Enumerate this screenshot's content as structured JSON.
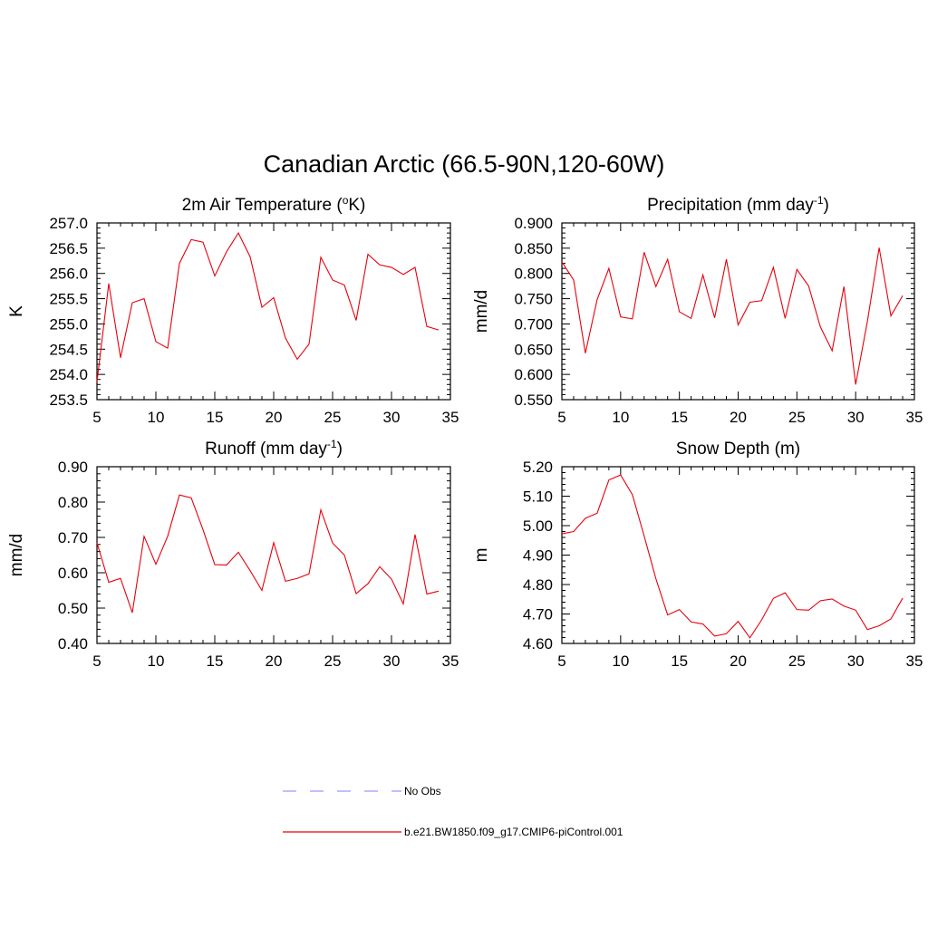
{
  "title": "Canadian Arctic (66.5-90N,120-60W)",
  "colors": {
    "series": "#e8000b",
    "obs": "#9999ff",
    "axis": "#000000"
  },
  "legend": {
    "items": [
      {
        "label": "No Obs",
        "style": "dashed",
        "color": "#9999ff"
      },
      {
        "label": "b.e21.BW1850.f09_g17.CMIP6-piControl.001",
        "style": "solid",
        "color": "#e8000b"
      }
    ]
  },
  "chart_data": [
    {
      "type": "line",
      "title": "2m Air Temperature (",
      "title_sup": "o",
      "title_tail": "K)",
      "xlabel": "",
      "ylabel": "K",
      "xlim": [
        5,
        35
      ],
      "ylim": [
        253.5,
        257.0
      ],
      "xticks": [
        5,
        10,
        15,
        20,
        25,
        30,
        35
      ],
      "yticks": [
        253.5,
        254.0,
        254.5,
        255.0,
        255.5,
        256.0,
        256.5,
        257.0
      ],
      "ytick_labels": [
        "253.5",
        "254.0",
        "254.5",
        "255.0",
        "255.5",
        "256.0",
        "256.5",
        "257.0"
      ],
      "x": [
        5,
        6,
        7,
        8,
        9,
        10,
        11,
        12,
        13,
        14,
        15,
        16,
        17,
        18,
        19,
        20,
        21,
        22,
        23,
        24,
        25,
        26,
        27,
        28,
        29,
        30,
        31,
        32,
        33,
        34
      ],
      "series": [
        {
          "name": "b.e21.BW1850.f09_g17.CMIP6-piControl.001",
          "values": [
            253.85,
            255.8,
            254.33,
            255.42,
            255.5,
            254.65,
            254.52,
            256.2,
            256.67,
            256.62,
            255.95,
            256.43,
            256.8,
            256.33,
            255.33,
            255.52,
            254.72,
            254.3,
            254.6,
            256.32,
            255.87,
            255.77,
            255.07,
            256.38,
            256.17,
            256.12,
            255.98,
            256.12,
            254.95,
            254.88
          ]
        }
      ]
    },
    {
      "type": "line",
      "title": "Precipitation (mm day",
      "title_sup": "-1",
      "title_tail": ")",
      "xlabel": "",
      "ylabel": "mm/d",
      "xlim": [
        5,
        35
      ],
      "ylim": [
        0.55,
        0.9
      ],
      "xticks": [
        5,
        10,
        15,
        20,
        25,
        30,
        35
      ],
      "yticks": [
        0.55,
        0.6,
        0.65,
        0.7,
        0.75,
        0.8,
        0.85,
        0.9
      ],
      "ytick_labels": [
        "0.550",
        "0.600",
        "0.650",
        "0.700",
        "0.750",
        "0.800",
        "0.850",
        "0.900"
      ],
      "x": [
        5,
        6,
        7,
        8,
        9,
        10,
        11,
        12,
        13,
        14,
        15,
        16,
        17,
        18,
        19,
        20,
        21,
        22,
        23,
        24,
        25,
        26,
        27,
        28,
        29,
        30,
        31,
        32,
        33,
        34
      ],
      "series": [
        {
          "name": "b.e21.BW1850.f09_g17.CMIP6-piControl.001",
          "values": [
            0.823,
            0.787,
            0.642,
            0.748,
            0.81,
            0.714,
            0.71,
            0.842,
            0.774,
            0.828,
            0.724,
            0.711,
            0.797,
            0.712,
            0.828,
            0.698,
            0.743,
            0.746,
            0.812,
            0.711,
            0.808,
            0.775,
            0.694,
            0.647,
            0.774,
            0.58,
            0.705,
            0.851,
            0.716,
            0.756
          ]
        }
      ]
    },
    {
      "type": "line",
      "title": "Runoff (mm day",
      "title_sup": "-1",
      "title_tail": ")",
      "xlabel": "",
      "ylabel": "mm/d",
      "xlim": [
        5,
        35
      ],
      "ylim": [
        0.4,
        0.9
      ],
      "xticks": [
        5,
        10,
        15,
        20,
        25,
        30,
        35
      ],
      "yticks": [
        0.4,
        0.5,
        0.6,
        0.7,
        0.8,
        0.9
      ],
      "ytick_labels": [
        "0.40",
        "0.50",
        "0.60",
        "0.70",
        "0.80",
        "0.90"
      ],
      "x": [
        5,
        6,
        7,
        8,
        9,
        10,
        11,
        12,
        13,
        14,
        15,
        16,
        17,
        18,
        19,
        20,
        21,
        22,
        23,
        24,
        25,
        26,
        27,
        28,
        29,
        30,
        31,
        32,
        33,
        34
      ],
      "series": [
        {
          "name": "b.e21.BW1850.f09_g17.CMIP6-piControl.001",
          "values": [
            0.685,
            0.573,
            0.584,
            0.487,
            0.703,
            0.624,
            0.703,
            0.82,
            0.812,
            0.722,
            0.623,
            0.622,
            0.658,
            0.606,
            0.55,
            0.685,
            0.576,
            0.584,
            0.597,
            0.778,
            0.684,
            0.65,
            0.541,
            0.569,
            0.617,
            0.582,
            0.512,
            0.708,
            0.54,
            0.548
          ]
        }
      ]
    },
    {
      "type": "line",
      "title": "Snow Depth (m)",
      "title_sup": "",
      "title_tail": "",
      "xlabel": "",
      "ylabel": "m",
      "xlim": [
        5,
        35
      ],
      "ylim": [
        4.6,
        5.2
      ],
      "xticks": [
        5,
        10,
        15,
        20,
        25,
        30,
        35
      ],
      "yticks": [
        4.6,
        4.7,
        4.8,
        4.9,
        5.0,
        5.1,
        5.2
      ],
      "ytick_labels": [
        "4.60",
        "4.70",
        "4.80",
        "4.90",
        "5.00",
        "5.10",
        "5.20"
      ],
      "x": [
        5,
        6,
        7,
        8,
        9,
        10,
        11,
        12,
        13,
        14,
        15,
        16,
        17,
        18,
        19,
        20,
        21,
        22,
        23,
        24,
        25,
        26,
        27,
        28,
        29,
        30,
        31,
        32,
        33,
        34
      ],
      "series": [
        {
          "name": "b.e21.BW1850.f09_g17.CMIP6-piControl.001",
          "values": [
            4.972,
            4.98,
            5.025,
            5.042,
            5.155,
            5.172,
            5.105,
            4.965,
            4.82,
            4.697,
            4.715,
            4.673,
            4.666,
            4.625,
            4.633,
            4.675,
            4.619,
            4.68,
            4.753,
            4.772,
            4.715,
            4.713,
            4.745,
            4.751,
            4.727,
            4.713,
            4.647,
            4.66,
            4.683,
            4.754
          ]
        }
      ]
    }
  ]
}
